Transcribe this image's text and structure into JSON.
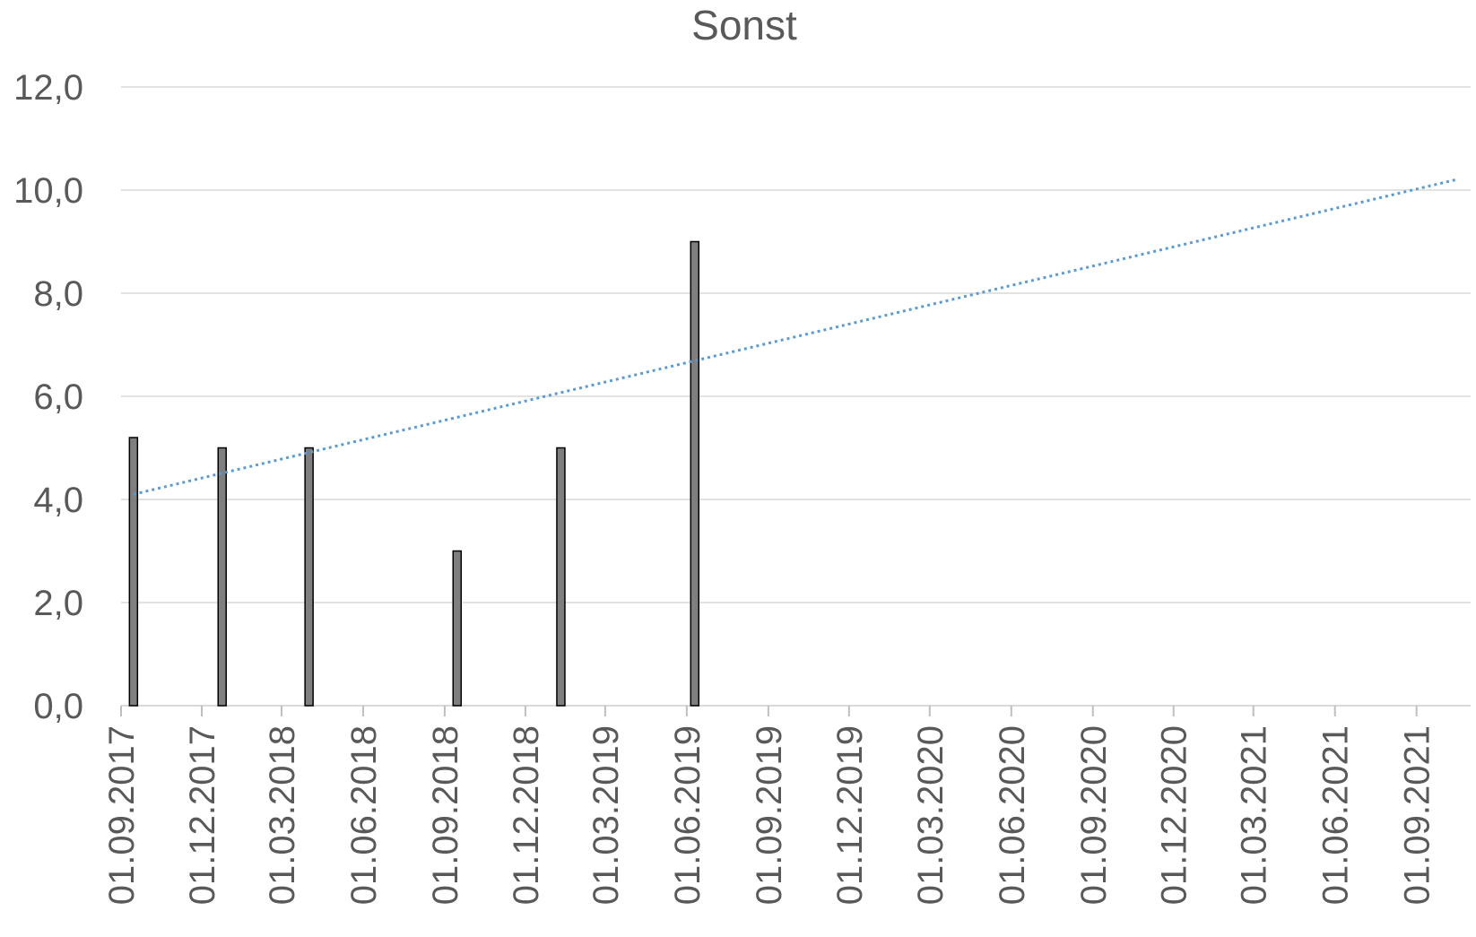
{
  "chart_data": {
    "type": "bar",
    "title": "Sonst",
    "xlabel": "",
    "ylabel": "",
    "ylim": [
      0,
      12
    ],
    "y_ticks": [
      "0,0",
      "2,0",
      "4,0",
      "6,0",
      "8,0",
      "10,0",
      "12,0"
    ],
    "x_range": [
      "2017-09-01",
      "2021-11-01"
    ],
    "x_ticks": [
      "01.09.2017",
      "01.12.2017",
      "01.03.2018",
      "01.06.2018",
      "01.09.2018",
      "01.12.2018",
      "01.03.2019",
      "01.06.2019",
      "01.09.2019",
      "01.12.2019",
      "01.03.2020",
      "01.06.2020",
      "01.09.2020",
      "01.12.2020",
      "01.03.2021",
      "01.06.2021",
      "01.09.2021"
    ],
    "grid": true,
    "bars": [
      {
        "date": "2017-09-15",
        "value": 5.2
      },
      {
        "date": "2017-12-24",
        "value": 5.0
      },
      {
        "date": "2018-04-01",
        "value": 5.0
      },
      {
        "date": "2018-09-15",
        "value": 3.0
      },
      {
        "date": "2019-01-10",
        "value": 5.0
      },
      {
        "date": "2019-06-10",
        "value": 9.0
      }
    ],
    "trendline": {
      "style": "dotted",
      "color": "#5b9bd5",
      "points": [
        {
          "date": "2017-09-15",
          "value": 4.1
        },
        {
          "date": "2021-10-15",
          "value": 10.2
        }
      ]
    },
    "colors": {
      "bar": "#7f7f7f",
      "bar_border": "#000000",
      "text": "#595959",
      "grid": "#d9d9d9"
    }
  }
}
